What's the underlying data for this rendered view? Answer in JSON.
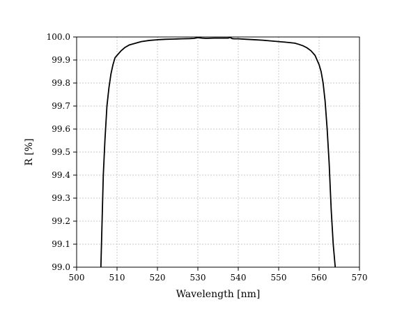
{
  "chart_data": {
    "type": "line",
    "title": "",
    "xlabel": "Wavelength [nm]",
    "ylabel": "R [%]",
    "xlim": [
      500,
      570
    ],
    "ylim": [
      99.0,
      100.0
    ],
    "x_ticks": [
      500,
      510,
      520,
      530,
      540,
      550,
      560,
      570
    ],
    "y_ticks": [
      99.0,
      99.1,
      99.2,
      99.3,
      99.4,
      99.5,
      99.6,
      99.7,
      99.8,
      99.9,
      100.0
    ],
    "x_tick_labels": [
      "500",
      "510",
      "520",
      "530",
      "540",
      "550",
      "560",
      "570"
    ],
    "y_tick_labels": [
      "99.0",
      "99.1",
      "99.2",
      "99.3",
      "99.4",
      "99.5",
      "99.6",
      "99.7",
      "99.8",
      "99.9",
      "100.0"
    ],
    "grid": true,
    "series": [
      {
        "x": [
          506.0,
          506.3,
          506.6,
          507.0,
          507.5,
          508.0,
          508.5,
          509.0,
          509.5,
          510.0,
          511.0,
          512.0,
          513.0,
          514.0,
          515.0,
          516.0,
          518.0,
          520.0,
          522.0,
          524.0,
          526.0,
          528.0,
          529.0,
          530.0,
          531.0,
          532.0,
          534.0,
          536.0,
          537.5,
          538.0,
          538.5,
          539.0,
          540.0,
          542.0,
          544.0,
          546.0,
          548.0,
          550.0,
          552.0,
          554.0,
          555.0,
          556.0,
          557.0,
          558.0,
          559.0,
          560.0,
          560.5,
          561.0,
          561.5,
          562.0,
          562.5,
          563.0,
          563.5,
          564.0
        ],
        "y": [
          99.0,
          99.2,
          99.4,
          99.55,
          99.7,
          99.78,
          99.84,
          99.88,
          99.91,
          99.92,
          99.94,
          99.955,
          99.965,
          99.97,
          99.975,
          99.98,
          99.985,
          99.988,
          99.99,
          99.991,
          99.992,
          99.993,
          99.994,
          99.997,
          99.995,
          99.994,
          99.995,
          99.995,
          99.995,
          99.998,
          99.993,
          99.992,
          99.992,
          99.99,
          99.988,
          99.986,
          99.983,
          99.98,
          99.977,
          99.973,
          99.968,
          99.962,
          99.953,
          99.94,
          99.92,
          99.88,
          99.85,
          99.8,
          99.72,
          99.6,
          99.45,
          99.25,
          99.1,
          99.0
        ]
      }
    ]
  }
}
